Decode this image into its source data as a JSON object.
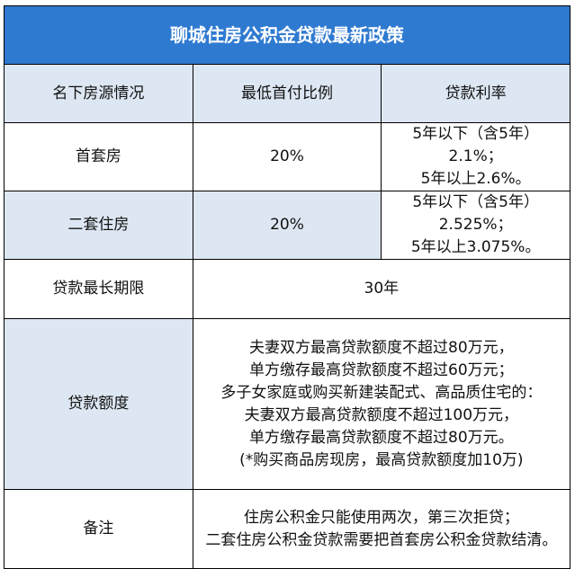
{
  "title": "聊城住房公积金贷款最新政策",
  "headers": [
    "名下房源情况",
    "最低首付比例",
    "贷款利率"
  ],
  "rows": {
    "first_home": {
      "label": "首套房",
      "down_payment": "20%",
      "rate_lines": [
        "5年以下（含5年）2.1%；",
        "5年以上2.6%。"
      ]
    },
    "second_home": {
      "label": "二套住房",
      "down_payment": "20%",
      "rate_lines": [
        "5年以下（含5年）2.525%；",
        "5年以上3.075%。"
      ]
    },
    "max_term": {
      "label": "贷款最长期限",
      "value": "30年"
    },
    "loan_amount": {
      "label": "贷款额度",
      "lines": [
        "夫妻双方最高贷款额度不超过80万元，",
        "单方缴存最高贷款额度不超过60万元；",
        "多子女家庭或购买新建装配式、高品质住宅的：",
        "夫妻双方最高贷款额度不超过100万元，",
        "单方缴存最高贷款额度不超过80万元。",
        "(*购买商品房现房，最高贷款额度加10万)"
      ]
    },
    "notes": {
      "label": "备注",
      "lines": [
        "住房公积金只能使用两次，第三次拒贷；",
        "二套住房公积金贷款需要把首套房公积金贷款结清。"
      ]
    }
  },
  "colors": {
    "title_bg": "#2f7ad1",
    "row_tint": "#dde7f3",
    "border": "#000000"
  }
}
